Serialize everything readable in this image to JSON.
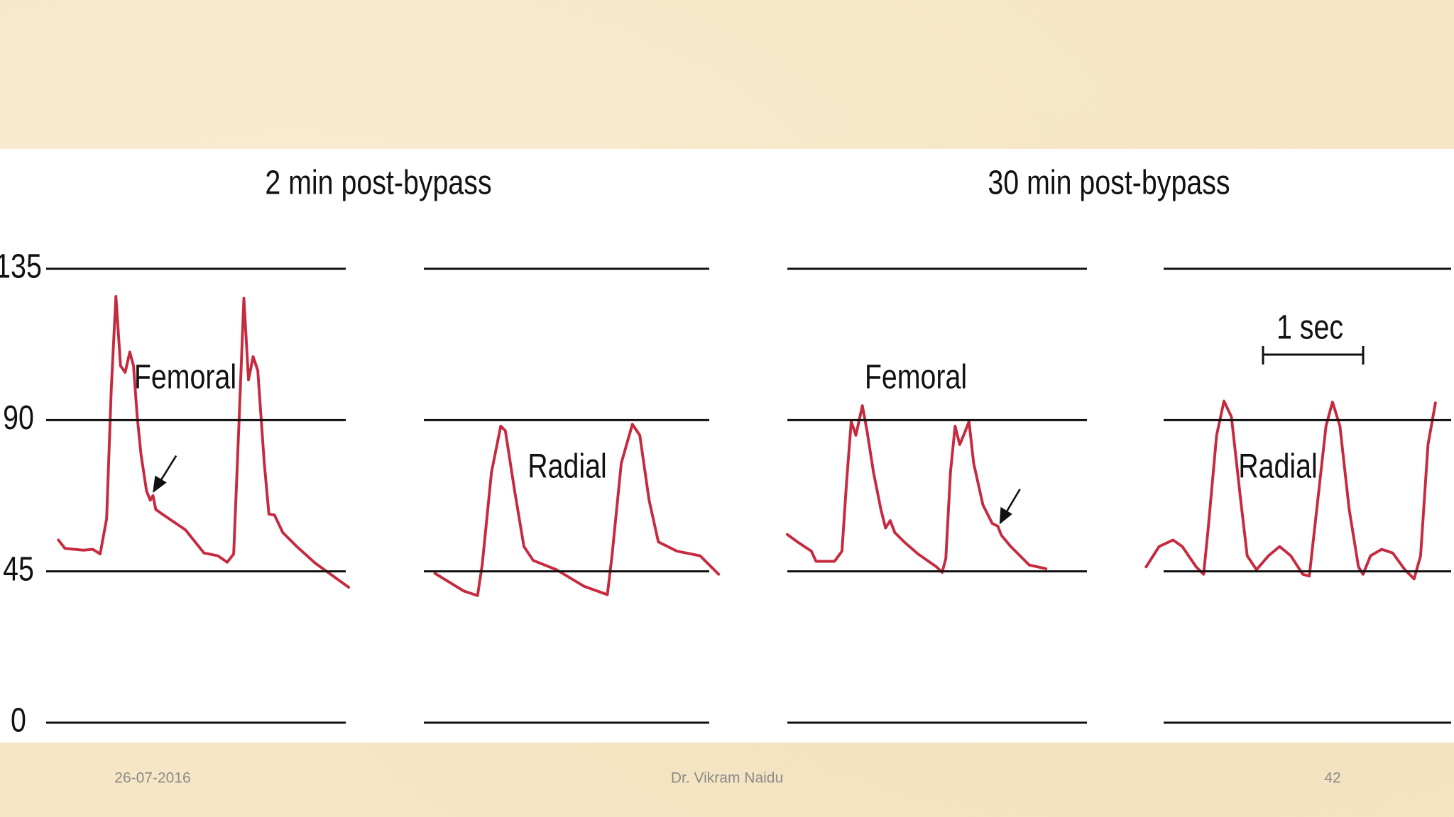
{
  "figure": {
    "titles": [
      "2 min post-bypass",
      "30 min post-bypass"
    ],
    "yticks": [
      0,
      45,
      90,
      135
    ],
    "trace_labels": [
      "Femoral",
      "Radial",
      "Femoral",
      "Radial"
    ],
    "scale_bar": "1 sec"
  },
  "footer": {
    "date": "26-07-2016",
    "author": "Dr. Vikram Naidu",
    "page": 42
  }
}
